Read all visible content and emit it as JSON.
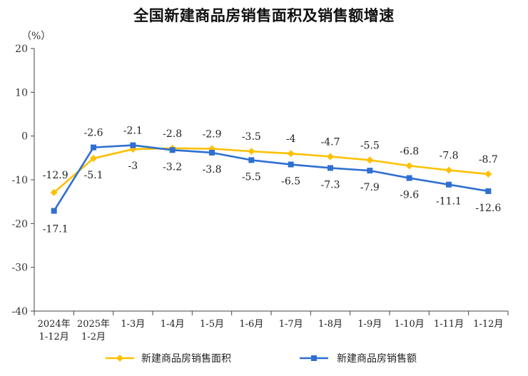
{
  "chart_data": {
    "type": "line",
    "title": "全国新建商品房销售面积及销售额增速",
    "unit_label": "（%）",
    "categories": [
      [
        "2024年",
        "1-12月"
      ],
      [
        "2025年",
        "1-2月"
      ],
      [
        "1-3月"
      ],
      [
        "1-4月"
      ],
      [
        "1-5月"
      ],
      [
        "1-6月"
      ],
      [
        "1-7月"
      ],
      [
        "1-8月"
      ],
      [
        "1-9月"
      ],
      [
        "1-10月"
      ],
      [
        "1-11月"
      ],
      [
        "1-12月"
      ]
    ],
    "ylim": [
      -40,
      20
    ],
    "yticks": [
      20,
      10,
      0,
      -10,
      -20,
      -30,
      -40
    ],
    "series": [
      {
        "name": "新建商品房销售面积",
        "color": "#FFC000",
        "values": [
          -12.9,
          -5.1,
          -3.0,
          -2.8,
          -2.9,
          -3.5,
          -4.0,
          -4.7,
          -5.5,
          -6.8,
          -7.8,
          -8.7
        ]
      },
      {
        "name": "新建商品房销售额",
        "color": "#2F6FD1",
        "values": [
          -17.1,
          -2.6,
          -2.1,
          -3.2,
          -3.8,
          -5.5,
          -6.5,
          -7.3,
          -7.9,
          -9.6,
          -11.1,
          -12.6
        ]
      }
    ],
    "legend": "bottom",
    "grid": false
  }
}
